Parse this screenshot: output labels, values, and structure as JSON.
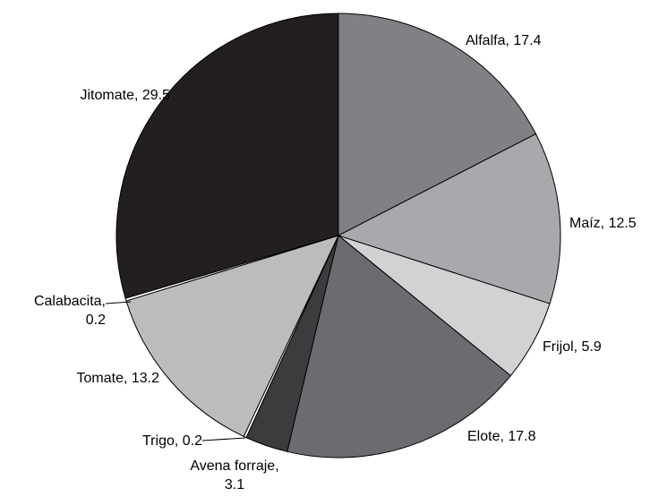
{
  "chart_data": {
    "type": "pie",
    "start_angle_deg": 0,
    "direction": "clockwise",
    "slices": [
      {
        "label": "Alfalfa",
        "value": 17.4,
        "color": "#808184"
      },
      {
        "label": "Maíz",
        "value": 12.5,
        "color": "#a8a9ac"
      },
      {
        "label": "Frijol",
        "value": 5.9,
        "color": "#d1d2d4"
      },
      {
        "label": "Elote",
        "value": 17.8,
        "color": "#6b6c6f"
      },
      {
        "label": "Avena forraje",
        "value": 3.1,
        "color": "#3c3c3e"
      },
      {
        "label": "Trigo",
        "value": 0.2,
        "color": "#ffffff"
      },
      {
        "label": "Tomate",
        "value": 13.2,
        "color": "#bbbcbe"
      },
      {
        "label": "Calabacita",
        "value": 0.2,
        "color": "#ffffff"
      },
      {
        "label": "Jitomate",
        "value": 29.5,
        "color": "#231f20"
      }
    ],
    "data_labels": [
      {
        "slice": "Alfalfa",
        "lines": [
          "Alfalfa, 17.4"
        ]
      },
      {
        "slice": "Maíz",
        "lines": [
          "Maíz, 12.5"
        ]
      },
      {
        "slice": "Frijol",
        "lines": [
          "Frijol, 5.9"
        ]
      },
      {
        "slice": "Elote",
        "lines": [
          "Elote, 17.8"
        ]
      },
      {
        "slice": "Avena forraje",
        "lines": [
          "Avena forraje,",
          "3.1"
        ]
      },
      {
        "slice": "Trigo",
        "lines": [
          "Trigo, 0.2"
        ]
      },
      {
        "slice": "Tomate",
        "lines": [
          "Tomate, 13.2"
        ]
      },
      {
        "slice": "Calabacita",
        "lines": [
          "Calabacita,",
          "0.2"
        ]
      },
      {
        "slice": "Jitomate",
        "lines": [
          "Jitomate, 29.5"
        ]
      }
    ]
  }
}
